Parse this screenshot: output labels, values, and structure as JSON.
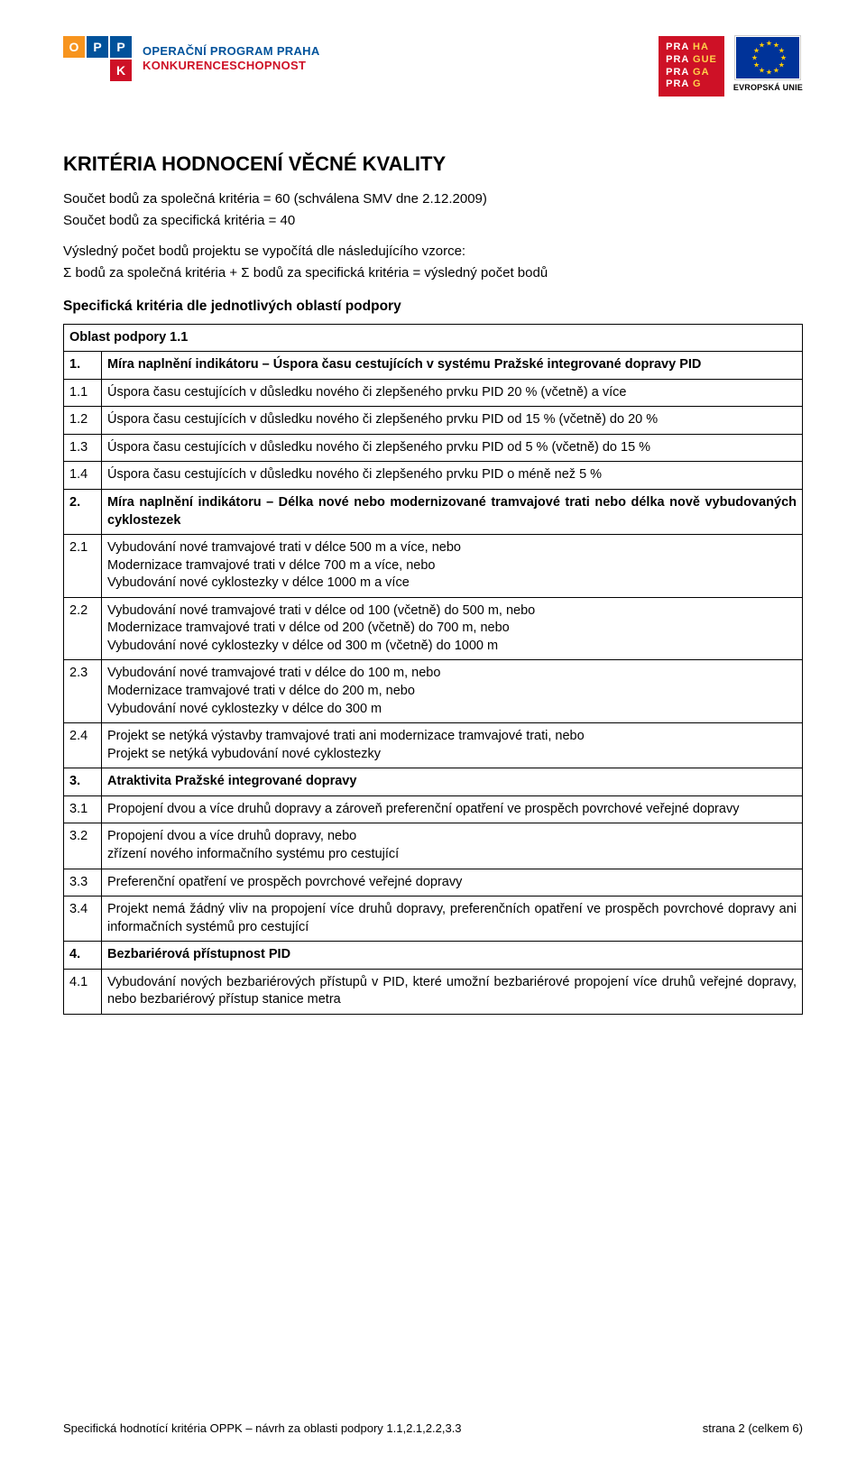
{
  "header": {
    "oppk": {
      "letters": [
        "O",
        "P",
        "P",
        "K"
      ]
    },
    "program_line1": "OPERAČNÍ PROGRAM PRAHA",
    "program_line2": "KONKURENCESCHOPNOST",
    "prague_rows": [
      [
        "PRA",
        "HA"
      ],
      [
        "PRA",
        "GUE"
      ],
      [
        "PRA",
        "GA"
      ],
      [
        "PRA",
        "G"
      ]
    ],
    "eu_label": "EVROPSKÁ UNIE"
  },
  "title": "KRITÉRIA HODNOCENÍ VĚCNÉ KVALITY",
  "intro": {
    "line1": "Součet bodů za společná kritéria = 60 (schválena SMV dne 2.12.2009)",
    "line2": "Součet bodů za specifická kritéria = 40",
    "line3": "Výsledný počet bodů projektu se vypočítá dle následujícího vzorce:",
    "line4": "Σ bodů za společná kritéria + Σ bodů za specifická kritéria = výsledný počet bodů"
  },
  "section_label": "Specifická kritéria dle jednotlivých oblastí podpory",
  "table_header": "Oblast podpory 1.1",
  "rows": [
    {
      "num": "1.",
      "text": "Míra naplnění indikátoru – Úspora času cestujících v systému Pražské integrované dopravy PID",
      "section": true
    },
    {
      "num": "1.1",
      "text": "Úspora času cestujících v důsledku nového či zlepšeného prvku PID 20 % (včetně) a více"
    },
    {
      "num": "1.2",
      "text": "Úspora času cestujících v důsledku nového či zlepšeného prvku PID od 15 % (včetně) do 20 %",
      "justify": true
    },
    {
      "num": "1.3",
      "text": "Úspora času cestujících v důsledku nového či zlepšeného prvku PID od 5 % (včetně) do 15 %",
      "justify": true
    },
    {
      "num": "1.4",
      "text": "Úspora času cestujících v důsledku nového či zlepšeného prvku PID o méně než 5 %"
    },
    {
      "num": "2.",
      "text": "Míra naplnění indikátoru – Délka nové nebo modernizované tramvajové trati nebo délka nově vybudovaných cyklostezek",
      "section": true,
      "justify": true
    },
    {
      "num": "2.1",
      "text": "Vybudování nové tramvajové trati v délce 500 m a více, nebo\nModernizace tramvajové trati v délce 700 m a více, nebo\nVybudování nové cyklostezky v délce 1000 m a více"
    },
    {
      "num": "2.2",
      "text": "Vybudování nové tramvajové trati v délce od 100 (včetně) do 500 m, nebo\nModernizace tramvajové trati v délce od 200 (včetně) do 700 m, nebo\nVybudování nové cyklostezky v délce od 300 m (včetně) do 1000 m"
    },
    {
      "num": "2.3",
      "text": "Vybudování nové tramvajové trati v délce do 100 m, nebo\nModernizace tramvajové trati v délce do 200 m, nebo\nVybudování nové cyklostezky v délce do 300 m"
    },
    {
      "num": "2.4",
      "text": "Projekt se netýká výstavby tramvajové trati ani modernizace tramvajové trati, nebo\nProjekt se netýká vybudování nové cyklostezky"
    },
    {
      "num": "3.",
      "text": "Atraktivita Pražské integrované dopravy",
      "section": true
    },
    {
      "num": "3.1",
      "text": "Propojení dvou a více druhů dopravy a zároveň preferenční opatření ve prospěch povrchové veřejné dopravy"
    },
    {
      "num": "3.2",
      "text": "Propojení dvou a více druhů dopravy, nebo\nzřízení nového informačního systému pro cestující"
    },
    {
      "num": "3.3",
      "text": "Preferenční opatření ve prospěch povrchové veřejné dopravy"
    },
    {
      "num": "3.4",
      "text": "Projekt nemá žádný vliv na propojení více druhů dopravy, preferenčních opatření ve prospěch povrchové dopravy ani informačních systémů pro cestující",
      "justify": true
    },
    {
      "num": "4.",
      "text": "Bezbariérová přístupnost PID",
      "section": true
    },
    {
      "num": "4.1",
      "text": "Vybudování nových bezbariérových přístupů v PID, které umožní bezbariérové propojení více druhů veřejné dopravy, nebo bezbariérový přístup stanice metra",
      "justify": true
    }
  ],
  "footer": {
    "left": "Specifická hodnotící kritéria OPPK – návrh za oblasti podpory 1.1,2.1,2.2,3.3",
    "right": "strana 2 (celkem 6)"
  },
  "colors": {
    "orange": "#f7941e",
    "blue": "#00529b",
    "red": "#ce1126",
    "eu_blue": "#003399",
    "eu_gold": "#ffcc00",
    "prague_gold": "#ffd24a"
  }
}
